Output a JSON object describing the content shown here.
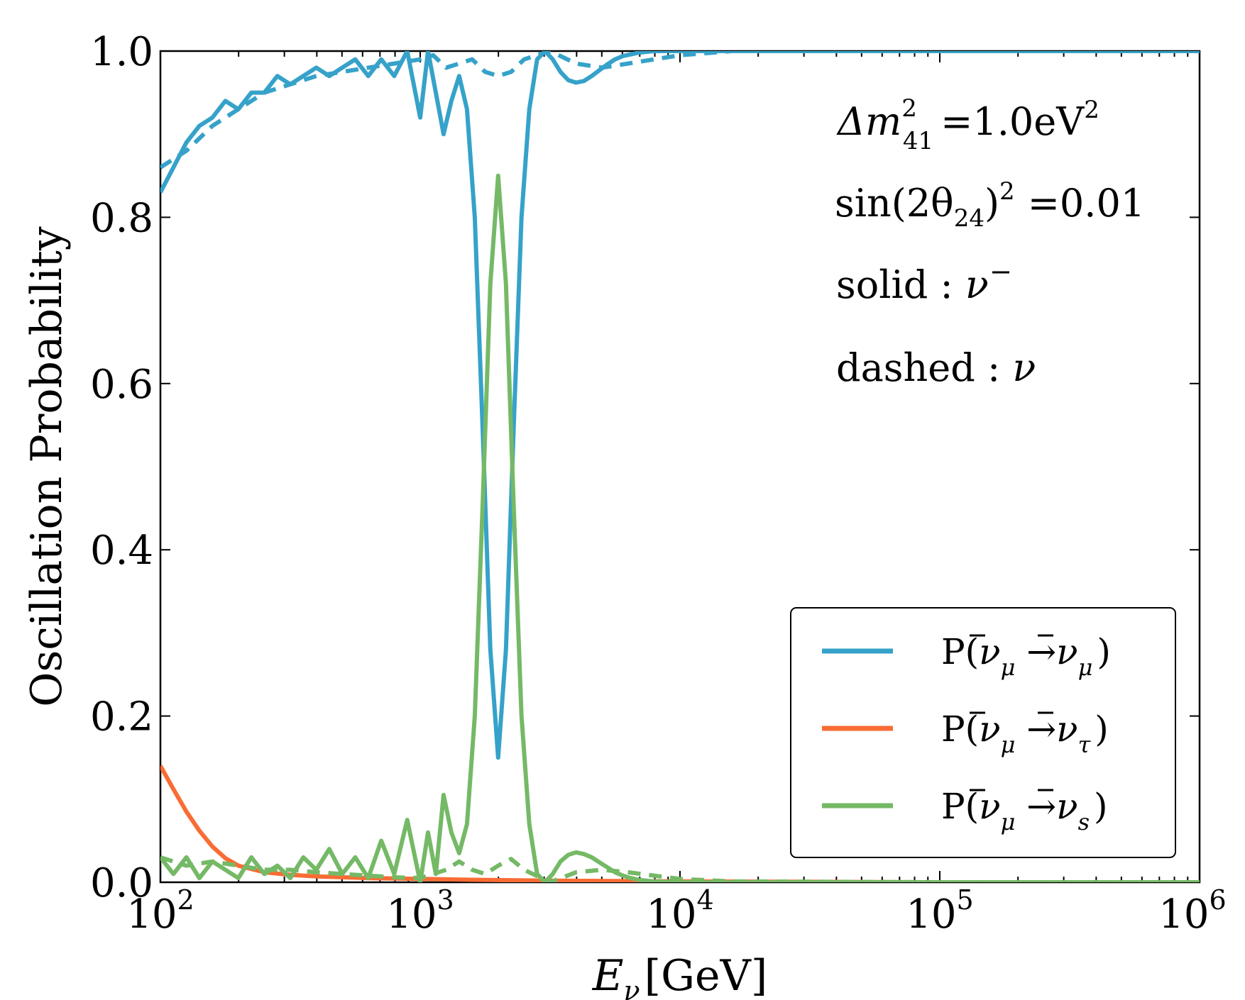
{
  "chart_data": {
    "type": "line",
    "xscale": "log",
    "xlim": [
      100,
      1000000
    ],
    "ylim": [
      0.0,
      1.0
    ],
    "xlabel": "E_ν [GeV]",
    "xlabel_parts": {
      "symbol": "E",
      "subscript": "ν",
      "unit": "[GeV]"
    },
    "ylabel": "Oscillation Probability",
    "yticks": [
      0.0,
      0.2,
      0.4,
      0.6,
      0.8,
      1.0
    ],
    "ytick_labels": [
      "0.0",
      "0.2",
      "0.4",
      "0.6",
      "0.8",
      "1.0"
    ],
    "xticks": [
      100,
      1000,
      10000,
      100000,
      1000000
    ],
    "xtick_labels": [
      {
        "base": "10",
        "exp": "2"
      },
      {
        "base": "10",
        "exp": "3"
      },
      {
        "base": "10",
        "exp": "4"
      },
      {
        "base": "10",
        "exp": "5"
      },
      {
        "base": "10",
        "exp": "6"
      }
    ],
    "annotations": [
      {
        "id": "dm2",
        "text": "Δm²₄₁ =1.0eV²"
      },
      {
        "id": "sin",
        "text": "sin(2θ₂₄)² =0.01"
      },
      {
        "id": "solid",
        "text": "solid : ν̄"
      },
      {
        "id": "dashed",
        "text": "dashed : ν"
      }
    ],
    "annotation_parts": {
      "dm2": {
        "delta_m": "Δm",
        "sup": "2",
        "sub": "41",
        "rest": "=1.0eV",
        "rest_sup": "2"
      },
      "sin": {
        "lead": "sin(2θ",
        "sub": "24",
        "close": ")",
        "sup": "2",
        "rest": "=0.01"
      },
      "solid": {
        "text": "solid : ",
        "symbol": "ν",
        "bar": "‾"
      },
      "dashed": {
        "text": "dashed : ",
        "symbol": "ν"
      }
    },
    "legend": {
      "position": "lower-right",
      "entries": [
        {
          "label": "P(ν̄μ →ν̄μ)",
          "color": "#36A2C9",
          "final": "μ"
        },
        {
          "label": "P(ν̄μ →ν̄τ)",
          "color": "#F96C34",
          "final": "τ"
        },
        {
          "label": "P(ν̄μ →ν̄s)",
          "color": "#75B966",
          "final": "s"
        }
      ]
    },
    "series": [
      {
        "name": "P(ν̄μ →ν̄μ) solid",
        "color": "#36A2C9",
        "style": "solid",
        "log10_x": [
          2.0,
          2.05,
          2.1,
          2.15,
          2.2,
          2.25,
          2.3,
          2.35,
          2.4,
          2.45,
          2.5,
          2.55,
          2.6,
          2.65,
          2.7,
          2.75,
          2.8,
          2.85,
          2.9,
          2.95,
          3.0,
          3.03,
          3.06,
          3.09,
          3.12,
          3.15,
          3.18,
          3.21,
          3.24,
          3.27,
          3.3,
          3.33,
          3.36,
          3.39,
          3.42,
          3.45,
          3.48,
          3.51,
          3.54,
          3.57,
          3.6,
          3.63,
          3.66,
          3.69,
          3.72,
          3.75,
          3.78,
          3.81,
          3.84,
          3.87,
          3.9,
          4.0,
          4.1,
          4.2,
          4.3,
          4.4,
          4.6,
          5.0,
          5.5,
          6.0
        ],
        "y": [
          0.83,
          0.86,
          0.89,
          0.91,
          0.92,
          0.94,
          0.93,
          0.95,
          0.95,
          0.97,
          0.96,
          0.97,
          0.98,
          0.97,
          0.98,
          0.99,
          0.97,
          0.99,
          0.97,
          1.0,
          0.92,
          1.0,
          0.95,
          0.9,
          0.94,
          0.97,
          0.93,
          0.8,
          0.55,
          0.28,
          0.15,
          0.28,
          0.55,
          0.8,
          0.93,
          0.99,
          1.0,
          0.99,
          0.975,
          0.965,
          0.962,
          0.964,
          0.97,
          0.977,
          0.984,
          0.99,
          0.994,
          0.996,
          0.998,
          0.999,
          1.0,
          1.0,
          1.0,
          1.0,
          1.0,
          1.0,
          1.0,
          1.0,
          1.0,
          1.0
        ]
      },
      {
        "name": "P(ν_μ →ν_μ) dashed",
        "color": "#36A2C9",
        "style": "dashed",
        "log10_x": [
          2.0,
          2.1,
          2.2,
          2.3,
          2.4,
          2.5,
          2.6,
          2.7,
          2.8,
          2.9,
          3.0,
          3.05,
          3.1,
          3.15,
          3.2,
          3.25,
          3.3,
          3.35,
          3.4,
          3.5,
          3.6,
          3.7,
          3.8,
          3.9,
          4.0,
          4.2,
          5.0,
          6.0
        ],
        "y": [
          0.86,
          0.88,
          0.91,
          0.93,
          0.95,
          0.96,
          0.97,
          0.975,
          0.98,
          0.985,
          0.99,
          0.995,
          0.98,
          0.985,
          0.99,
          0.975,
          0.97,
          0.975,
          0.99,
          1.0,
          0.985,
          0.98,
          0.985,
          0.99,
          0.995,
          1.0,
          1.0,
          1.0
        ]
      },
      {
        "name": "P(ν̄μ →ν̄τ)",
        "color": "#F96C34",
        "style": "solid",
        "log10_x": [
          2.0,
          2.05,
          2.1,
          2.15,
          2.2,
          2.25,
          2.3,
          2.4,
          2.5,
          2.6,
          2.8,
          3.0,
          3.2,
          3.5,
          4.0,
          5.0,
          6.0
        ],
        "y": [
          0.14,
          0.112,
          0.085,
          0.062,
          0.043,
          0.029,
          0.02,
          0.012,
          0.009,
          0.007,
          0.005,
          0.004,
          0.003,
          0.002,
          0.001,
          0.0,
          0.0
        ]
      },
      {
        "name": "P(ν̄μ →ν̄s) solid",
        "color": "#75B966",
        "style": "solid",
        "log10_x": [
          2.0,
          2.05,
          2.1,
          2.15,
          2.2,
          2.25,
          2.3,
          2.35,
          2.4,
          2.45,
          2.5,
          2.55,
          2.6,
          2.65,
          2.7,
          2.75,
          2.8,
          2.85,
          2.9,
          2.95,
          3.0,
          3.03,
          3.06,
          3.09,
          3.12,
          3.15,
          3.18,
          3.21,
          3.24,
          3.27,
          3.3,
          3.33,
          3.36,
          3.39,
          3.42,
          3.45,
          3.48,
          3.51,
          3.54,
          3.57,
          3.6,
          3.63,
          3.66,
          3.69,
          3.72,
          3.75,
          3.78,
          3.81,
          3.84,
          3.87,
          3.9,
          4.0,
          4.1,
          4.2,
          4.3,
          4.4,
          4.6,
          5.0,
          5.5,
          6.0
        ],
        "y": [
          0.03,
          0.01,
          0.03,
          0.005,
          0.025,
          0.015,
          0.005,
          0.03,
          0.01,
          0.02,
          0.005,
          0.03,
          0.015,
          0.04,
          0.01,
          0.03,
          0.005,
          0.05,
          0.01,
          0.075,
          0.0,
          0.06,
          0.01,
          0.105,
          0.06,
          0.035,
          0.07,
          0.2,
          0.45,
          0.72,
          0.85,
          0.72,
          0.45,
          0.2,
          0.07,
          0.01,
          0.0,
          0.01,
          0.025,
          0.033,
          0.036,
          0.034,
          0.03,
          0.024,
          0.018,
          0.012,
          0.008,
          0.005,
          0.003,
          0.002,
          0.001,
          0.0,
          0.0,
          0.0,
          0.0,
          0.0,
          0.0,
          0.0,
          0.0,
          0.0
        ]
      },
      {
        "name": "P(ν_μ →ν_s) dashed",
        "color": "#75B966",
        "style": "dashed",
        "log10_x": [
          2.0,
          2.1,
          2.2,
          2.3,
          2.4,
          2.5,
          2.6,
          2.7,
          2.8,
          2.9,
          3.0,
          3.05,
          3.1,
          3.15,
          3.2,
          3.25,
          3.3,
          3.35,
          3.4,
          3.5,
          3.6,
          3.7,
          3.8,
          3.9,
          4.0,
          4.2,
          5.0,
          6.0
        ],
        "y": [
          0.03,
          0.02,
          0.025,
          0.02,
          0.015,
          0.015,
          0.012,
          0.01,
          0.008,
          0.006,
          0.005,
          0.01,
          0.015,
          0.025,
          0.015,
          0.01,
          0.02,
          0.028,
          0.015,
          0.0,
          0.012,
          0.015,
          0.012,
          0.008,
          0.004,
          0.001,
          0.0,
          0.0
        ]
      }
    ]
  }
}
